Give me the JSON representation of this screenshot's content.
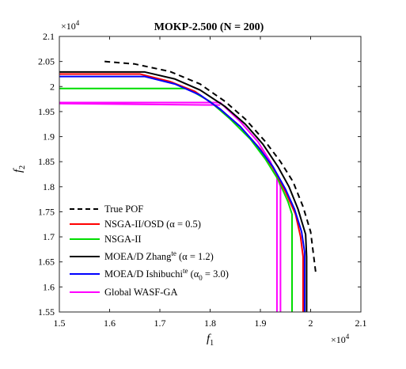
{
  "chart_data": {
    "type": "line",
    "title": "MOKP-2.500 (N = 200)",
    "xlabel": "f",
    "xlabel_sub": "1",
    "ylabel": "f",
    "ylabel_sub": "2",
    "x_multiplier": "×10",
    "x_multiplier_exp": "4",
    "y_multiplier": "×10",
    "y_multiplier_exp": "4",
    "xlim": [
      1.5,
      2.1
    ],
    "ylim": [
      1.55,
      2.1
    ],
    "xticks": [
      1.5,
      1.6,
      1.7,
      1.8,
      1.9,
      2.0,
      2.1
    ],
    "xtick_labels": [
      "1.5",
      "1.6",
      "1.7",
      "1.8",
      "1.9",
      "2",
      "2.1"
    ],
    "yticks": [
      1.55,
      1.6,
      1.65,
      1.7,
      1.75,
      1.8,
      1.85,
      1.9,
      1.95,
      2.0,
      2.05,
      2.1
    ],
    "ytick_labels": [
      "1.55",
      "1.6",
      "1.65",
      "1.7",
      "1.75",
      "1.8",
      "1.85",
      "1.9",
      "1.95",
      "2",
      "2.05",
      "2.1"
    ],
    "grid": false,
    "legend_position": "lower-left",
    "series": [
      {
        "name": "True POF",
        "color": "#000000",
        "dash": true,
        "width": 2,
        "points": [
          [
            1.59,
            2.05
          ],
          [
            1.65,
            2.045
          ],
          [
            1.72,
            2.03
          ],
          [
            1.78,
            2.005
          ],
          [
            1.83,
            1.97
          ],
          [
            1.87,
            1.935
          ],
          [
            1.91,
            1.89
          ],
          [
            1.94,
            1.85
          ],
          [
            1.965,
            1.81
          ],
          [
            1.985,
            1.76
          ],
          [
            2.0,
            1.71
          ],
          [
            2.005,
            1.67
          ],
          [
            2.01,
            1.63
          ]
        ]
      },
      {
        "name": "NSGA-II/OSD (α = 0.5)",
        "color": "#ff0000",
        "dash": false,
        "width": 2,
        "points": [
          [
            1.5,
            2.025
          ],
          [
            1.66,
            2.025
          ],
          [
            1.72,
            2.01
          ],
          [
            1.77,
            1.99
          ],
          [
            1.82,
            1.955
          ],
          [
            1.86,
            1.92
          ],
          [
            1.9,
            1.875
          ],
          [
            1.93,
            1.83
          ],
          [
            1.95,
            1.79
          ],
          [
            1.97,
            1.745
          ],
          [
            1.98,
            1.7
          ],
          [
            1.985,
            1.66
          ],
          [
            1.985,
            1.55
          ]
        ]
      },
      {
        "name": "NSGA-II",
        "color": "#00dd00",
        "dash": false,
        "width": 2,
        "points": [
          [
            1.5,
            1.996
          ],
          [
            1.755,
            1.996
          ],
          [
            1.8,
            1.97
          ],
          [
            1.84,
            1.935
          ],
          [
            1.88,
            1.895
          ],
          [
            1.91,
            1.855
          ],
          [
            1.935,
            1.815
          ],
          [
            1.955,
            1.77
          ],
          [
            1.963,
            1.745
          ],
          [
            1.963,
            1.55
          ]
        ]
      },
      {
        "name": "MOEA/D Zhang",
        "name_sup": "te",
        "name_rest": " (α = 1.2)",
        "color": "#000000",
        "dash": false,
        "width": 2,
        "points": [
          [
            1.5,
            2.029
          ],
          [
            1.67,
            2.029
          ],
          [
            1.73,
            2.015
          ],
          [
            1.78,
            1.993
          ],
          [
            1.83,
            1.96
          ],
          [
            1.87,
            1.925
          ],
          [
            1.905,
            1.885
          ],
          [
            1.935,
            1.84
          ],
          [
            1.957,
            1.8
          ],
          [
            1.975,
            1.755
          ],
          [
            1.99,
            1.705
          ],
          [
            1.992,
            1.66
          ],
          [
            1.992,
            1.55
          ]
        ]
      },
      {
        "name": "MOEA/D Ishibuchi",
        "name_sup": "te",
        "name_rest": " (α",
        "name_sub": "0",
        "name_tail": " = 3.0)",
        "color": "#0000ff",
        "dash": false,
        "width": 2,
        "points": [
          [
            1.5,
            2.02
          ],
          [
            1.67,
            2.02
          ],
          [
            1.73,
            2.005
          ],
          [
            1.78,
            1.983
          ],
          [
            1.82,
            1.955
          ],
          [
            1.86,
            1.92
          ],
          [
            1.895,
            1.88
          ],
          [
            1.925,
            1.84
          ],
          [
            1.95,
            1.795
          ],
          [
            1.968,
            1.755
          ],
          [
            1.982,
            1.71
          ],
          [
            1.988,
            1.67
          ],
          [
            1.988,
            1.55
          ]
        ]
      },
      {
        "name": "Global WASF-GA",
        "color": "#ff00ff",
        "dash": false,
        "width": 2,
        "points": [
          [
            1.5,
            1.968
          ],
          [
            1.82,
            1.968
          ],
          [
            1.86,
            1.93
          ],
          [
            1.895,
            1.89
          ],
          [
            1.92,
            1.85
          ],
          [
            1.935,
            1.815
          ],
          [
            1.94,
            1.8
          ],
          [
            1.94,
            1.55
          ]
        ]
      }
    ],
    "extra_segments": [
      {
        "color": "#ff00ff",
        "points": [
          [
            1.5,
            1.966
          ],
          [
            1.82,
            1.963
          ]
        ]
      },
      {
        "color": "#ff00ff",
        "points": [
          [
            1.933,
            1.82
          ],
          [
            1.933,
            1.55
          ]
        ]
      }
    ]
  }
}
